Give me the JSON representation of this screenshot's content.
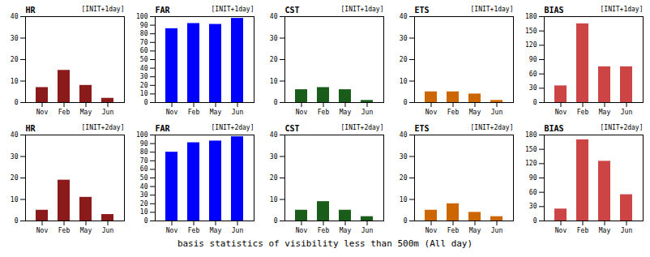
{
  "chart_data": [
    {
      "type": "bar",
      "title": "HR",
      "subtitle": "[INIT+1day]",
      "categories": [
        "Nov",
        "Feb",
        "May",
        "Jun"
      ],
      "values": [
        7,
        15,
        8,
        2
      ],
      "color": "#8B1A1A",
      "ylim": [
        0,
        40
      ],
      "yticks": [
        0,
        10,
        20,
        30,
        40
      ],
      "grid": false
    },
    {
      "type": "bar",
      "title": "FAR",
      "subtitle": "[INIT+1day]",
      "categories": [
        "Nov",
        "Feb",
        "May",
        "Jun"
      ],
      "values": [
        86,
        92,
        91,
        98
      ],
      "color": "#0000FF",
      "ylim": [
        0,
        100
      ],
      "yticks": [
        0,
        10,
        20,
        30,
        40,
        50,
        60,
        70,
        80,
        90,
        100
      ],
      "grid": false
    },
    {
      "type": "bar",
      "title": "CST",
      "subtitle": "[INIT+1day]",
      "categories": [
        "Nov",
        "Feb",
        "May",
        "Jun"
      ],
      "values": [
        6,
        7,
        6,
        1
      ],
      "color": "#1A5C1A",
      "ylim": [
        0,
        40
      ],
      "yticks": [
        0,
        10,
        20,
        30,
        40
      ],
      "grid": false
    },
    {
      "type": "bar",
      "title": "ETS",
      "subtitle": "[INIT+1day]",
      "categories": [
        "Nov",
        "Feb",
        "May",
        "Jun"
      ],
      "values": [
        5,
        5,
        4,
        1
      ],
      "color": "#CC6600",
      "ylim": [
        0,
        40
      ],
      "yticks": [
        0,
        10,
        20,
        30,
        40
      ],
      "grid": false
    },
    {
      "type": "bar",
      "title": "BIAS",
      "subtitle": "[INIT+1day]",
      "categories": [
        "Nov",
        "Feb",
        "May",
        "Jun"
      ],
      "values": [
        35,
        165,
        75,
        75
      ],
      "color": "#CC4444",
      "ylim": [
        0,
        180
      ],
      "yticks": [
        0,
        30,
        60,
        90,
        120,
        150,
        180
      ],
      "grid": false
    },
    {
      "type": "bar",
      "title": "HR",
      "subtitle": "[INIT+2day]",
      "categories": [
        "Nov",
        "Feb",
        "May",
        "Jun"
      ],
      "values": [
        5,
        19,
        11,
        3
      ],
      "color": "#8B1A1A",
      "ylim": [
        0,
        40
      ],
      "yticks": [
        0,
        10,
        20,
        30,
        40
      ],
      "grid": false
    },
    {
      "type": "bar",
      "title": "FAR",
      "subtitle": "[INIT+2day]",
      "categories": [
        "Nov",
        "Feb",
        "May",
        "Jun"
      ],
      "values": [
        80,
        91,
        93,
        98
      ],
      "color": "#0000FF",
      "ylim": [
        0,
        100
      ],
      "yticks": [
        0,
        10,
        20,
        30,
        40,
        50,
        60,
        70,
        80,
        90,
        100
      ],
      "grid": false
    },
    {
      "type": "bar",
      "title": "CST",
      "subtitle": "[INIT+2day]",
      "categories": [
        "Nov",
        "Feb",
        "May",
        "Jun"
      ],
      "values": [
        5,
        9,
        5,
        2
      ],
      "color": "#1A5C1A",
      "ylim": [
        0,
        40
      ],
      "yticks": [
        0,
        10,
        20,
        30,
        40
      ],
      "grid": false
    },
    {
      "type": "bar",
      "title": "ETS",
      "subtitle": "[INIT+2day]",
      "categories": [
        "Nov",
        "Feb",
        "May",
        "Jun"
      ],
      "values": [
        5,
        8,
        4,
        2
      ],
      "color": "#CC6600",
      "ylim": [
        0,
        40
      ],
      "yticks": [
        0,
        10,
        20,
        30,
        40
      ],
      "grid": false
    },
    {
      "type": "bar",
      "title": "BIAS",
      "subtitle": "[INIT+2day]",
      "categories": [
        "Nov",
        "Feb",
        "May",
        "Jun"
      ],
      "values": [
        25,
        170,
        125,
        55
      ],
      "color": "#CC4444",
      "ylim": [
        0,
        180
      ],
      "yticks": [
        0,
        30,
        60,
        90,
        120,
        150,
        180
      ],
      "grid": false
    }
  ],
  "caption": "basis statistics of visibility less than 500m (All day)"
}
